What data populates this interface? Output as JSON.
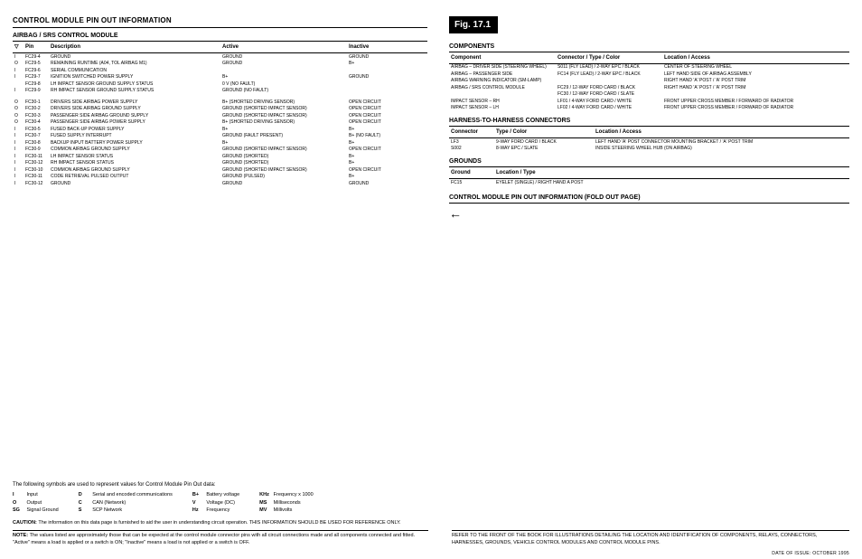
{
  "left": {
    "title": "CONTROL MODULE PIN OUT INFORMATION",
    "subtitle": "AIRBAG / SRS CONTROL MODULE",
    "headers": {
      "io": "▽",
      "pin": "Pin",
      "desc": "Description",
      "active": "Active",
      "inactive": "Inactive"
    },
    "rows": [
      {
        "io": "I",
        "pin": "FC29-4",
        "desc": "GROUND",
        "active": "GROUND",
        "inactive": "GROUND"
      },
      {
        "io": "O",
        "pin": "FC29-5",
        "desc": "REMAINING RUNTIME (A04, TOL AIRBAG M1)",
        "active": "GROUND",
        "inactive": "B+"
      },
      {
        "io": "I",
        "pin": "FC29-6",
        "desc": "SERIAL COMMUNICATION",
        "active": "",
        "inactive": ""
      },
      {
        "io": "I",
        "pin": "FC29-7",
        "desc": "IGNITION SWITCHED POWER SUPPLY",
        "active": "B+",
        "inactive": "GROUND"
      },
      {
        "io": "",
        "pin": "FC29-8",
        "desc": "LH IMPACT SENSOR GROUND SUPPLY STATUS",
        "active": "0 V (NO FAULT)",
        "inactive": ""
      },
      {
        "io": "I",
        "pin": "FC29-9",
        "desc": "RH IMPACT SENSOR GROUND SUPPLY STATUS",
        "active": "GROUND (NO FAULT)",
        "inactive": ""
      }
    ],
    "rows2": [
      {
        "io": "O",
        "pin": "FC30-1",
        "desc": "DRIVERS SIDE AIRBAG POWER SUPPLY",
        "active": "B+ (SHORTED DRIVING SENSOR)",
        "inactive": "OPEN CIRCUIT"
      },
      {
        "io": "O",
        "pin": "FC30-2",
        "desc": "DRIVERS SIDE AIRBAG GROUND SUPPLY",
        "active": "GROUND (SHORTED IMPACT SENSOR)",
        "inactive": "OPEN CIRCUIT"
      },
      {
        "io": "O",
        "pin": "FC30-3",
        "desc": "PASSENGER SIDE AIRBAG GROUND SUPPLY",
        "active": "GROUND (SHORTED IMPACT SENSOR)",
        "inactive": "OPEN CIRCUIT"
      },
      {
        "io": "O",
        "pin": "FC30-4",
        "desc": "PASSENGER SIDE AIRBAG POWER SUPPLY",
        "active": "B+ (SHORTED DRIVING SENSOR)",
        "inactive": "OPEN CIRCUIT"
      },
      {
        "io": "I",
        "pin": "FC30-5",
        "desc": "FUSED BACK-UP POWER SUPPLY",
        "active": "B+",
        "inactive": "B+"
      },
      {
        "io": "I",
        "pin": "FC30-7",
        "desc": "FUSED SUPPLY INTERRUPT",
        "active": "GROUND (FAULT PRESENT)",
        "inactive": "B+ (NO FAULT)"
      },
      {
        "io": "I",
        "pin": "FC30-8",
        "desc": "BACKUP INPUT BATTERY POWER SUPPLY",
        "active": "B+",
        "inactive": "B+"
      },
      {
        "io": "I",
        "pin": "FC30-9",
        "desc": "COMMON AIRBAG GROUND SUPPLY",
        "active": "GROUND (SHORTED IMPACT SENSOR)",
        "inactive": "OPEN CIRCUIT"
      },
      {
        "io": "I",
        "pin": "FC30-11",
        "desc": "LH IMPACT SENSOR STATUS",
        "active": "GROUND (SHORTED)",
        "inactive": "B+"
      },
      {
        "io": "I",
        "pin": "FC30-12",
        "desc": "RH IMPACT SENSOR STATUS",
        "active": "GROUND (SHORTED)",
        "inactive": "B+"
      },
      {
        "io": "I",
        "pin": "FC30-10",
        "desc": "COMMON AIRBAG GROUND SUPPLY",
        "active": "GROUND (SHORTED IMPACT SENSOR)",
        "inactive": "OPEN CIRCUIT"
      },
      {
        "io": "I",
        "pin": "FC30-11",
        "desc": "CODE RETRIEVAL PULSED OUTPUT",
        "active": "GROUND (PULSED)",
        "inactive": "B+"
      },
      {
        "io": "I",
        "pin": "FC30-12",
        "desc": "GROUND",
        "active": "GROUND",
        "inactive": "GROUND"
      }
    ]
  },
  "right": {
    "fig": "Fig. 17.1",
    "components_title": "COMPONENTS",
    "components_headers": {
      "a": "Component",
      "b": "Connector / Type / Color",
      "c": "Location / Access"
    },
    "components_rows": [
      {
        "a": "AIRBAG – DRIVER SIDE (STEERING WHEEL)",
        "b": "S011 (FLY LEAD) / 2-WAY EPC / BLACK",
        "c": "CENTER OF STEERING WHEEL"
      },
      {
        "a": "AIRBAG – PASSENGER SIDE",
        "b": "FC14 (FLY LEAD) / 2-WAY EPC / BLACK",
        "c": "LEFT HAND SIDE OF AIRBAG ASSEMBLY"
      },
      {
        "a": "AIRBAG WARNING INDICATOR (SM-LAMP)",
        "b": "",
        "c": "RIGHT HAND 'A' POST / 'A' POST TRIM"
      },
      {
        "a": "AIRBAG / SRS CONTROL MODULE",
        "b": "FC29 / 12-WAY FORD CARD / BLACK",
        "c": "RIGHT HAND 'A' POST / 'A' POST TRIM"
      },
      {
        "a": "",
        "b": "FC30 / 12-WAY FORD CARD / SLATE",
        "c": ""
      },
      {
        "a": "IMPACT SENSOR – RH",
        "b": "LF01 / 4-WAY FORD CARD / WHITE",
        "c": "FRONT UPPER CROSS MEMBER / FORWARD OF RADIATOR"
      },
      {
        "a": "IMPACT SENSOR – LH",
        "b": "LF02 / 4-WAY FORD CARD / WHITE",
        "c": "FRONT UPPER CROSS MEMBER / FORWARD OF RADIATOR"
      }
    ],
    "harness_title": "HARNESS-TO-HARNESS CONNECTORS",
    "harness_headers": {
      "a": "Connector",
      "b": "Type / Color",
      "c": "Location / Access"
    },
    "harness_rows": [
      {
        "a": "LF3",
        "b": "9-WAY FORD CARD / BLACK",
        "c": "LEFT HAND 'A' POST CONNECTOR MOUNTING BRACKET / 'A' POST TRIM"
      },
      {
        "a": "S002",
        "b": "8-WAY EPC / SLATE",
        "c": "INSIDE STEERING WHEEL HUB (ON AIRBAG)"
      }
    ],
    "grounds_title": "GROUNDS",
    "grounds_headers": {
      "a": "Ground",
      "b": "Location / Type"
    },
    "grounds_rows": [
      {
        "a": "FC15",
        "b": "EYELET (SINGLE) / RIGHT HAND A POST"
      }
    ],
    "foldout": "CONTROL MODULE PIN OUT INFORMATION (FOLD OUT PAGE)",
    "arrow": "←"
  },
  "footer": {
    "lead": "The following symbols are used to represent values for Control Module Pin Out data:",
    "legend": [
      [
        {
          "k": "I",
          "v": "Input"
        },
        {
          "k": "O",
          "v": "Output"
        },
        {
          "k": "SG",
          "v": "Signal Ground"
        }
      ],
      [
        {
          "k": "D",
          "v": "Serial and encoded communications"
        },
        {
          "k": "C",
          "v": "CAN (Network)"
        },
        {
          "k": "S",
          "v": "SCP Network"
        }
      ],
      [
        {
          "k": "B+",
          "v": "Battery voltage"
        },
        {
          "k": "V",
          "v": "Voltage (DC)"
        },
        {
          "k": "Hz",
          "v": "Frequency"
        }
      ],
      [
        {
          "k": "KHz",
          "v": "Frequency x 1000"
        },
        {
          "k": "MS",
          "v": "Milliseconds"
        },
        {
          "k": "MV",
          "v": "Millivolts"
        }
      ]
    ],
    "caution": "CAUTION: The information on this data page is furnished to aid the user in understanding circuit operation. THIS INFORMATION SHOULD BE USED FOR REFERENCE ONLY.",
    "note": "NOTE: The values listed are approximately those that can be expected at the control module connector pins with all circuit connections made and all components connected and fitted. \"Active\" means a load is applied or a switch is ON; \"Inactive\" means a load is not applied or a switch is OFF.",
    "right_note": "REFER TO THE FRONT OF THE BOOK FOR ILLUSTRATIONS DETAILING THE LOCATION AND IDENTIFICATION OF COMPONENTS, RELAYS, CONNECTORS, HARNESSES, GROUNDS, VEHICLE CONTROL MODULES AND CONTROL MODULE PINS.",
    "date": "DATE OF ISSUE: OCTOBER 1995"
  }
}
